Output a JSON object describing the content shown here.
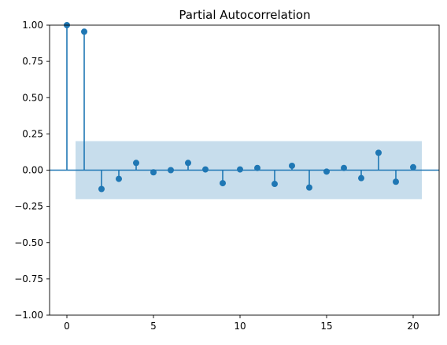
{
  "chart_data": {
    "type": "stem",
    "title": "Partial Autocorrelation",
    "xlabel": "",
    "ylabel": "",
    "xlim": [
      -1,
      21.5
    ],
    "ylim": [
      -1.0,
      1.0
    ],
    "x_ticks": [
      0,
      5,
      10,
      15,
      20
    ],
    "x_tick_labels": [
      "0",
      "5",
      "10",
      "15",
      "20"
    ],
    "y_ticks": [
      -1.0,
      -0.75,
      -0.5,
      -0.25,
      0.0,
      0.25,
      0.5,
      0.75,
      1.0
    ],
    "y_tick_labels": [
      "−1.00",
      "−0.75",
      "−0.50",
      "−0.25",
      "0.00",
      "0.25",
      "0.50",
      "0.75",
      "1.00"
    ],
    "lags": [
      0,
      1,
      2,
      3,
      4,
      5,
      6,
      7,
      8,
      9,
      10,
      11,
      12,
      13,
      14,
      15,
      16,
      17,
      18,
      19,
      20
    ],
    "values": [
      1.0,
      0.955,
      -0.13,
      -0.06,
      0.05,
      -0.015,
      0.0,
      0.05,
      0.005,
      -0.09,
      0.005,
      0.015,
      -0.095,
      0.03,
      -0.12,
      -0.01,
      0.015,
      -0.055,
      0.12,
      -0.08,
      0.02
    ],
    "confidence_band": {
      "x_range": [
        0.5,
        20.5
      ],
      "lower": -0.2,
      "upper": 0.2
    },
    "colors": {
      "stem": "#1f77b4",
      "marker": "#1f77b4",
      "band": "#1f77b4",
      "baseline": "#1f77b4"
    },
    "grid": false
  }
}
